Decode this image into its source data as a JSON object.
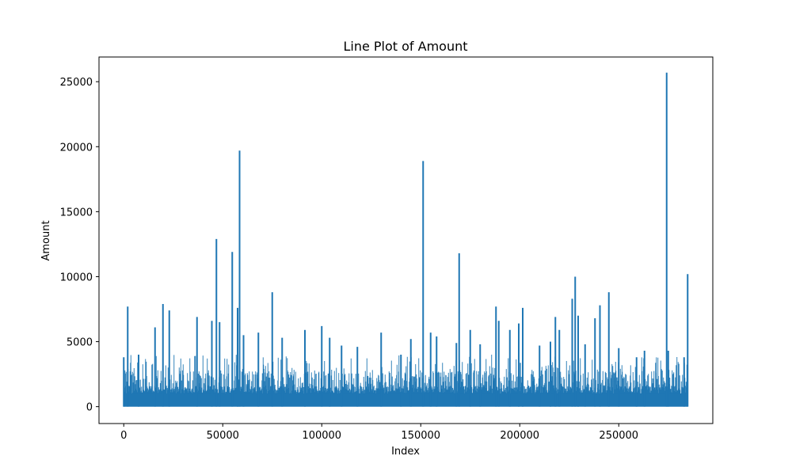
{
  "chart_data": {
    "type": "line",
    "title": "Line Plot of Amount",
    "xlabel": "Index",
    "ylabel": "Amount",
    "xlim": [
      -12500,
      297500
    ],
    "ylim": [
      -1300,
      26900
    ],
    "x_ticks": [
      0,
      50000,
      100000,
      150000,
      200000,
      250000
    ],
    "x_tick_labels": [
      "0",
      "50000",
      "100000",
      "150000",
      "200000",
      "250000"
    ],
    "y_ticks": [
      0,
      5000,
      10000,
      15000,
      20000,
      25000
    ],
    "y_tick_labels": [
      "0",
      "5000",
      "10000",
      "15000",
      "20000",
      "25000"
    ],
    "grid": false,
    "series": [
      {
        "color": "#1f77b4",
        "x": [
          0,
          2000,
          7500,
          15800,
          19800,
          23000,
          37000,
          44500,
          46800,
          48400,
          54800,
          57500,
          58500,
          60500,
          68000,
          75000,
          80000,
          91500,
          100000,
          104000,
          110000,
          118000,
          130000,
          140000,
          145000,
          151200,
          155000,
          158000,
          168000,
          169400,
          175000,
          180000,
          188000,
          189400,
          195000,
          199500,
          201500,
          210000,
          215500,
          218000,
          220000,
          226500,
          228000,
          229500,
          233000,
          238000,
          240500,
          245000,
          250000,
          259000,
          263000,
          274200,
          275000,
          283000,
          284800
        ],
        "y": [
          3800,
          7700,
          4000,
          6100,
          7900,
          7400,
          6900,
          6600,
          12900,
          6500,
          11900,
          7600,
          19700,
          5500,
          5700,
          8800,
          5300,
          5900,
          6200,
          5300,
          4700,
          4600,
          5700,
          4000,
          5200,
          18900,
          5700,
          5400,
          4900,
          11800,
          5900,
          4800,
          7700,
          6600,
          5900,
          6400,
          7600,
          4700,
          5000,
          6900,
          5900,
          8300,
          10000,
          7000,
          4800,
          6800,
          7800,
          8800,
          4500,
          3800,
          4300,
          25700,
          4300,
          3800,
          10200
        ]
      }
    ]
  }
}
